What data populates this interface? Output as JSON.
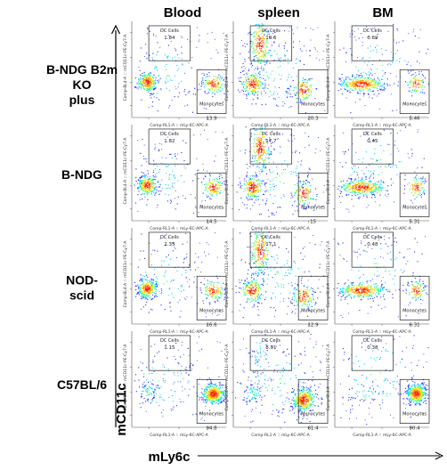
{
  "columns": [
    "Blood",
    "spleen",
    "BM"
  ],
  "rows": [
    [
      "B-NDG B2m",
      "KO",
      "plus"
    ],
    [
      "B-NDG"
    ],
    [
      "NOD-",
      "scid"
    ],
    [
      "C57BL/6"
    ]
  ],
  "axes": {
    "y_title": "mCD11c",
    "x_title": "mLy6c",
    "panel_xlabel": "Comp-RL1-A :: mLy-6C-APC-A",
    "panel_ylabel": "Comp-BL4-A :: mCD11c-PE-Cy7-A"
  },
  "colors": {
    "density_low": "#1a2cff",
    "density_mid": "#00d4ff",
    "density_high": "#f5e400",
    "density_peak": "#ff2200",
    "gate": "#000000"
  },
  "chart_data": {
    "type": "scatter",
    "title": "",
    "xlabel": "mLy6c",
    "ylabel": "mCD11c",
    "gates": [
      "DC Cells",
      "Monocytes"
    ],
    "panels": [
      {
        "row": "B-NDG B2m KO plus",
        "column": "Blood",
        "dc_cells": 1.84,
        "monocytes": 13.9
      },
      {
        "row": "B-NDG B2m KO plus",
        "column": "spleen",
        "dc_cells": 10.6,
        "monocytes": 20.3
      },
      {
        "row": "B-NDG B2m KO plus",
        "column": "BM",
        "dc_cells": 0.69,
        "monocytes": 5.46
      },
      {
        "row": "B-NDG",
        "column": "Blood",
        "dc_cells": 1.82,
        "monocytes": 14.5
      },
      {
        "row": "B-NDG",
        "column": "spleen",
        "dc_cells": 17.7,
        "monocytes": 15.0
      },
      {
        "row": "B-NDG",
        "column": "BM",
        "dc_cells": 0.45,
        "monocytes": 5.31
      },
      {
        "row": "NOD-scid",
        "column": "Blood",
        "dc_cells": 2.35,
        "monocytes": 16.6
      },
      {
        "row": "NOD-scid",
        "column": "spleen",
        "dc_cells": 17.1,
        "monocytes": 12.9
      },
      {
        "row": "NOD-scid",
        "column": "BM",
        "dc_cells": 0.48,
        "monocytes": 6.31
      },
      {
        "row": "C57BL/6",
        "column": "Blood",
        "dc_cells": 1.15,
        "monocytes": 94.8
      },
      {
        "row": "C57BL/6",
        "column": "spleen",
        "dc_cells": 8.91,
        "monocytes": 61.4
      },
      {
        "row": "C57BL/6",
        "column": "BM",
        "dc_cells": 0.38,
        "monocytes": 90.4
      }
    ]
  }
}
